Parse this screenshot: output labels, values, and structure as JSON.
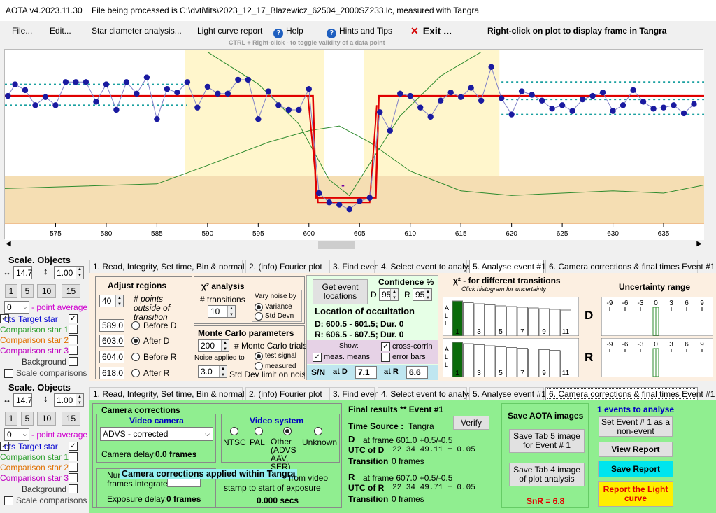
{
  "window": {
    "title": "AOTA v4.2023.11.30    File being processed is C:\\dvti\\fits\\2023_12_17_Blazewicz_62504_2000SZ233.lc, measured with Tangra"
  },
  "menu": {
    "file": "File...",
    "edit": "Edit...",
    "star_diameter": "Star diameter analysis...",
    "light_curve_report": "Light curve report",
    "help": "Help",
    "hints": "Hints and Tips",
    "exit": "Exit ...",
    "right_click_hint": "Right-click on plot to display frame in Tangra",
    "ctrl_hint": "CTRL + Right-click   -  to toggle validity of a data point"
  },
  "plot": {
    "x_ticks": [
      "575",
      "580",
      "585",
      "590",
      "595",
      "600",
      "605",
      "610",
      "615",
      "620",
      "625",
      "630",
      "635"
    ],
    "x_range": [
      570,
      639
    ],
    "y_range": [
      -10,
      140
    ],
    "baseline_level": 100,
    "event_level": 12,
    "d_frame": 601.0,
    "r_frame": 607.0,
    "event_label": "-",
    "points": [
      [
        570.3,
        100
      ],
      [
        571,
        110
      ],
      [
        572,
        105
      ],
      [
        573,
        92
      ],
      [
        574,
        99
      ],
      [
        575,
        92
      ],
      [
        576,
        112
      ],
      [
        577,
        112
      ],
      [
        578,
        112
      ],
      [
        579,
        95
      ],
      [
        580,
        110
      ],
      [
        581,
        88
      ],
      [
        582,
        112
      ],
      [
        583,
        102
      ],
      [
        584,
        116
      ],
      [
        585,
        80
      ],
      [
        586,
        106
      ],
      [
        587,
        103
      ],
      [
        588,
        112
      ],
      [
        589,
        90
      ],
      [
        590,
        108
      ],
      [
        591,
        102
      ],
      [
        592,
        102
      ],
      [
        593,
        114
      ],
      [
        594,
        114
      ],
      [
        595,
        80
      ],
      [
        596,
        104
      ],
      [
        597,
        92
      ],
      [
        598,
        88
      ],
      [
        599,
        88
      ],
      [
        600,
        106
      ],
      [
        601,
        16
      ],
      [
        602,
        8
      ],
      [
        603,
        6
      ],
      [
        604,
        2
      ],
      [
        605,
        9
      ],
      [
        606,
        12
      ],
      [
        607,
        86
      ],
      [
        608,
        70
      ],
      [
        609,
        102
      ],
      [
        610,
        100
      ],
      [
        611,
        90
      ],
      [
        612,
        82
      ],
      [
        613,
        96
      ],
      [
        614,
        103
      ],
      [
        615,
        99
      ],
      [
        616,
        107
      ],
      [
        617,
        96
      ],
      [
        618,
        125
      ],
      [
        619,
        98
      ],
      [
        620,
        84
      ],
      [
        621,
        104
      ],
      [
        622,
        101
      ],
      [
        623,
        96
      ],
      [
        624,
        89
      ],
      [
        625,
        92
      ],
      [
        626,
        87
      ],
      [
        627,
        97
      ],
      [
        628,
        100
      ],
      [
        629,
        103
      ],
      [
        630,
        87
      ],
      [
        631,
        92
      ],
      [
        632,
        105
      ],
      [
        633,
        95
      ],
      [
        634,
        89
      ],
      [
        635,
        90
      ],
      [
        636,
        92
      ],
      [
        637,
        85
      ],
      [
        638,
        93
      ]
    ]
  },
  "left_panel": {
    "scale_objects": "Scale.  Objects",
    "scale_value": "14.7",
    "ratio_value": "1.00",
    "buttons": [
      "1",
      "5",
      "10",
      "15"
    ],
    "point_average_value": "0",
    "point_average_label": "- point average",
    "target_star": "Target star",
    "target_prefix": "ots",
    "comp1": "Comparison star 1",
    "comp2": "Comparison star 2",
    "comp3": "Comparison star 3",
    "background": "Background",
    "scale_comparisons": "Scale comparisons"
  },
  "tabs": [
    "1.  Read, Integrity, Set time, Bin & normalise",
    "2. (info)  Fourier plot",
    "3. Find events",
    "4. Select event to analyse",
    "5. Analyse event #1",
    "6. Camera corrections & final times Event #1"
  ],
  "analyse": {
    "adjust_regions": "Adjust regions",
    "points_outside_value": "40",
    "points_outside_label": "# points outside of transition",
    "regions": [
      {
        "value": "589.0",
        "label": "Before D"
      },
      {
        "value": "603.0",
        "label": "After D"
      },
      {
        "value": "604.0",
        "label": "Before R"
      },
      {
        "value": "618.0",
        "label": "After R"
      }
    ],
    "chi2_title": "χ² analysis",
    "transitions_label": "# transitions",
    "transitions_value": "10",
    "vary_noise": "Vary noise by",
    "variance": "Variance",
    "std_devn": "Std Devn",
    "mc_title": "Monte Carlo parameters",
    "mc_trials_value": "200",
    "mc_trials_label": "# Monte Carlo trials",
    "noise_applied": "Noise applied to",
    "test_signal": "test signal",
    "measured": "measured",
    "std_limit_value": "3.0",
    "std_limit_label": "Std Dev limit on noise",
    "get_event_locations": "Get event locations",
    "confidence": "Confidence %",
    "d_conf": "95",
    "r_conf": "95",
    "location_title": "Location of occultation",
    "d_location": "D: 600.5 - 601.5; Dur. 0",
    "r_location": "R: 606.5 - 607.5; Dur. 0",
    "show": "Show:",
    "cross_corrln": "cross-corrln",
    "meas_means": "meas. means",
    "error_bars": "error bars",
    "sn": "S/N",
    "at_d": "at D",
    "sn_d": "7.1",
    "at_r": "at R",
    "sn_r": "6.6",
    "chi2_transitions_title": "χ² - for different transitions",
    "chi2_hint": "Click histogram for uncertainty",
    "hist_labels": [
      "1",
      "3",
      "5",
      "7",
      "9",
      "11"
    ],
    "hist_side": "ALL",
    "d_hist": [
      100,
      95,
      92,
      89,
      86,
      84,
      82,
      80,
      78,
      76,
      74
    ],
    "r_hist": [
      100,
      96,
      93,
      90,
      87,
      85,
      83,
      81,
      79,
      77,
      75
    ],
    "uncertainty_title": "Uncertainty range",
    "unc_ticks": [
      "-9",
      "-6",
      "-3",
      "0",
      "3",
      "6",
      "9"
    ],
    "d_label": "D",
    "r_label": "R"
  },
  "camera": {
    "title": "Camera corrections",
    "video_camera": "Video camera",
    "camera_value": "ADVS - corrected",
    "camera_delay": "Camera delay:",
    "camera_delay_value": "0.0 frames",
    "video_system": "Video system",
    "ntsc": "NTSC",
    "pal": "PAL",
    "other": "Other (ADVS AAV, SER)",
    "unknown": "Unknown",
    "num_frames_partial": "Num",
    "frames_integrated": "frames integrated",
    "overlay": "Camera corrections applied within Tangra",
    "from_video": "from video",
    "stamp_text": "stamp to start of exposure",
    "exposure_delay": "Exposure delay:",
    "exposure_delay_value": "0 frames",
    "exposure_secs": "0.000 secs"
  },
  "final": {
    "title": "Final results   **   Event  #1",
    "time_source": "Time Source :",
    "time_source_value": "Tangra",
    "verify": "Verify",
    "d_label": "D",
    "d_frame": "at frame 601.0  +0.5/-0.5",
    "utc_d_label": "UTC of D",
    "utc_d": "22 34 49.11   ± 0.05",
    "transition": "Transition",
    "transition_value": "0 frames",
    "r_label": "R",
    "r_frame": "at frame 607.0  +0.5/-0.5",
    "utc_r_label": "UTC of R",
    "utc_r": "22 34 49.71   ± 0.05"
  },
  "save": {
    "title": "Save AOTA images",
    "tab5": "Save Tab 5 image for Event # 1",
    "tab4": "Save Tab 4 image of plot analysis",
    "snr": "SnR = 6.8"
  },
  "events": {
    "title": "1  events to analyse",
    "non_event": "Set Event # 1 as a non-event",
    "view_report": "View Report",
    "save_report": "Save Report",
    "report_lc": "Report the Light curve"
  }
}
